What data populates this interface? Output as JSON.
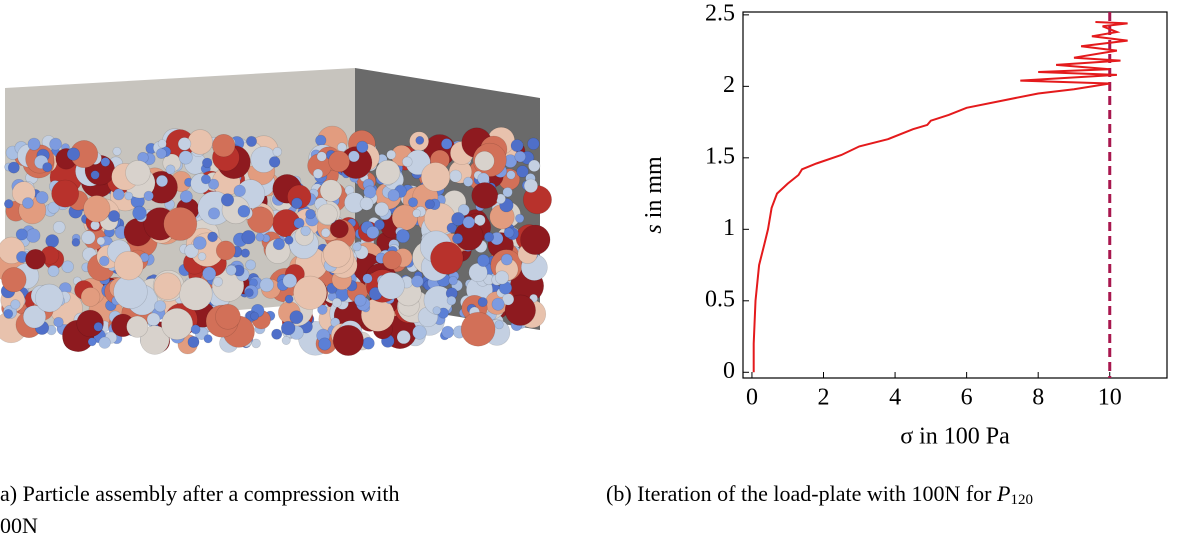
{
  "captions": {
    "a_line1": "a) Particle assembly after a compression with",
    "a_line2": "00N",
    "b_text": "(b) Iteration of the load-plate with 100N for ",
    "b_symbol": "P",
    "b_subscript": "120"
  },
  "chart_data": {
    "type": "line",
    "xlabel": "σ in 100 Pa",
    "ylabel_symbol": "s",
    "ylabel": " in mm",
    "xlim": [
      -0.25,
      11.6
    ],
    "ylim": [
      -0.04,
      2.52
    ],
    "xticks": [
      0,
      2,
      4,
      6,
      8,
      10
    ],
    "yticks": [
      0,
      0.5,
      1,
      1.5,
      2,
      2.5
    ],
    "reference_x": 10,
    "reference_color": "#a8174e",
    "series": [
      {
        "color": "#e41a1c",
        "x": [
          0.05,
          0.05,
          0.1,
          0.2,
          0.35,
          0.45,
          0.55,
          0.7,
          1.0,
          1.3,
          1.4,
          1.8,
          2.5,
          3,
          3.8,
          4.5,
          4.9,
          5,
          5.5,
          6,
          7,
          8,
          9,
          10,
          7.5,
          10.2,
          8,
          10,
          8.5,
          10.3,
          9,
          10.2,
          9.2,
          10.5,
          9.5,
          10.2,
          9.8,
          10.5,
          9.6
        ],
        "values": [
          0,
          0.2,
          0.5,
          0.75,
          0.9,
          1.0,
          1.15,
          1.25,
          1.32,
          1.38,
          1.42,
          1.46,
          1.52,
          1.58,
          1.63,
          1.7,
          1.73,
          1.76,
          1.8,
          1.85,
          1.9,
          1.95,
          1.98,
          2.02,
          2.04,
          2.08,
          2.1,
          2.12,
          2.15,
          2.18,
          2.2,
          2.25,
          2.28,
          2.32,
          2.35,
          2.38,
          2.42,
          2.44,
          2.45
        ]
      }
    ]
  }
}
